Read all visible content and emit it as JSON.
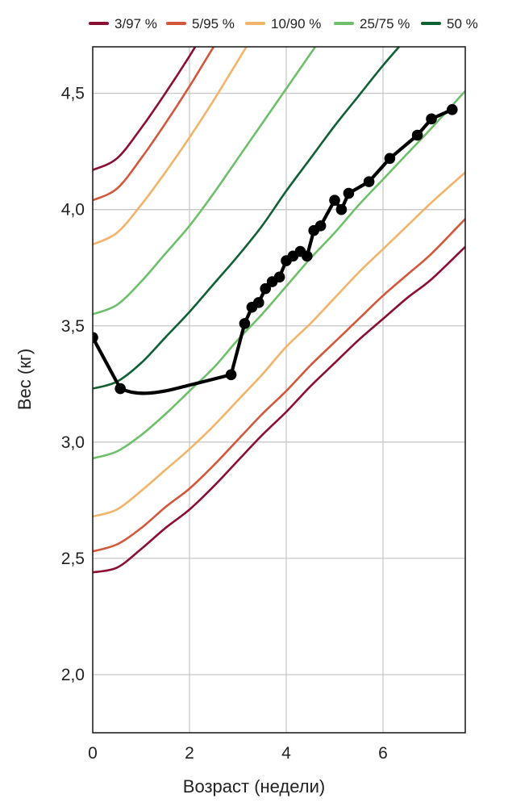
{
  "chart_data": {
    "type": "line",
    "xlabel": "Возраст (недели)",
    "ylabel": "Вес (кг)",
    "xlim": [
      0,
      7.7
    ],
    "ylim": [
      1.75,
      4.7
    ],
    "x_ticks": [
      0,
      2,
      4,
      6
    ],
    "x_tick_labels": [
      "0",
      "2",
      "4",
      "6"
    ],
    "y_ticks": [
      2.0,
      2.5,
      3.0,
      3.5,
      4.0,
      4.5
    ],
    "y_tick_labels": [
      "2,0",
      "2,5",
      "3,0",
      "3,5",
      "4,0",
      "4,5"
    ],
    "grid": true,
    "legend_position": "top",
    "legend": [
      {
        "label": "3/97 %",
        "color": "#8b0f32"
      },
      {
        "label": "5/95 %",
        "color": "#d4573b"
      },
      {
        "label": "10/90 %",
        "color": "#f2b36a"
      },
      {
        "label": "25/75 %",
        "color": "#6dbf6a"
      },
      {
        "label": "50 %",
        "color": "#0f6133"
      }
    ],
    "percentile_curves": [
      {
        "group": "3/97 %",
        "color": "#8b0f32",
        "x": [
          0,
          0.5,
          1,
          1.5,
          2,
          2.5,
          3,
          3.5,
          4,
          4.5,
          5,
          5.5,
          6,
          6.5,
          7,
          7.7
        ],
        "y": [
          2.44,
          2.46,
          2.54,
          2.63,
          2.71,
          2.81,
          2.92,
          3.03,
          3.13,
          3.24,
          3.34,
          3.44,
          3.53,
          3.62,
          3.7,
          3.84
        ]
      },
      {
        "group": "5/95 %",
        "color": "#d4573b",
        "x": [
          0,
          0.5,
          1,
          1.5,
          2,
          2.5,
          3,
          3.5,
          4,
          4.5,
          5,
          5.5,
          6,
          6.5,
          7,
          7.7
        ],
        "y": [
          2.53,
          2.56,
          2.63,
          2.72,
          2.8,
          2.9,
          3.01,
          3.12,
          3.22,
          3.33,
          3.43,
          3.53,
          3.63,
          3.72,
          3.81,
          3.96
        ]
      },
      {
        "group": "10/90 %",
        "color": "#f2b36a",
        "x": [
          0,
          0.5,
          1,
          1.5,
          2,
          2.5,
          3,
          3.5,
          4,
          4.5,
          5,
          5.5,
          6,
          6.5,
          7,
          7.7
        ],
        "y": [
          2.68,
          2.71,
          2.79,
          2.88,
          2.97,
          3.07,
          3.18,
          3.29,
          3.41,
          3.51,
          3.62,
          3.73,
          3.83,
          3.93,
          4.03,
          4.16
        ]
      },
      {
        "group": "25/75 %",
        "color": "#6dbf6a",
        "x": [
          0,
          0.5,
          1,
          1.5,
          2,
          2.5,
          3,
          3.5,
          4,
          4.5,
          5,
          5.5,
          6,
          6.5,
          7,
          7.7
        ],
        "y": [
          2.93,
          2.96,
          3.03,
          3.12,
          3.22,
          3.32,
          3.44,
          3.55,
          3.67,
          3.79,
          3.9,
          4.02,
          4.13,
          4.24,
          4.35,
          4.51
        ]
      },
      {
        "group": "50 %",
        "color": "#0f6133",
        "x": [
          0,
          0.5,
          1,
          1.5,
          2,
          2.5,
          3,
          3.5,
          4,
          4.5,
          5,
          5.5,
          6,
          6.5,
          7
        ],
        "y": [
          3.23,
          3.26,
          3.34,
          3.45,
          3.56,
          3.68,
          3.8,
          3.93,
          4.08,
          4.22,
          4.36,
          4.49,
          4.62,
          4.74,
          4.86
        ]
      },
      {
        "group": "25/75 %",
        "color": "#6dbf6a",
        "x": [
          0,
          0.5,
          1,
          1.5,
          2,
          2.5,
          3,
          3.5,
          4,
          4.5,
          5
        ],
        "y": [
          3.55,
          3.59,
          3.69,
          3.81,
          3.93,
          4.07,
          4.22,
          4.37,
          4.52,
          4.67,
          4.82
        ]
      },
      {
        "group": "10/90 %",
        "color": "#f2b36a",
        "x": [
          0,
          0.5,
          1,
          1.5,
          2,
          2.5,
          3,
          3.5
        ],
        "y": [
          3.85,
          3.9,
          4.02,
          4.16,
          4.31,
          4.47,
          4.64,
          4.81
        ]
      },
      {
        "group": "5/95 %",
        "color": "#d4573b",
        "x": [
          0,
          0.5,
          1,
          1.5,
          2,
          2.5,
          3
        ],
        "y": [
          4.04,
          4.09,
          4.22,
          4.37,
          4.53,
          4.7,
          4.86
        ]
      },
      {
        "group": "3/97 %",
        "color": "#8b0f32",
        "x": [
          0,
          0.5,
          1,
          1.5,
          2,
          2.5,
          3
        ],
        "y": [
          4.17,
          4.22,
          4.35,
          4.5,
          4.66,
          4.83,
          4.99
        ]
      }
    ],
    "measurements": {
      "color": "#000000",
      "x": [
        0,
        0.57,
        2.86,
        3.14,
        3.29,
        3.43,
        3.57,
        3.71,
        3.86,
        4.0,
        4.14,
        4.29,
        4.43,
        4.57,
        4.71,
        5.0,
        5.14,
        5.29,
        5.71,
        6.14,
        6.71,
        7.0,
        7.43
      ],
      "y": [
        3.45,
        3.23,
        3.29,
        3.51,
        3.58,
        3.6,
        3.66,
        3.69,
        3.71,
        3.78,
        3.8,
        3.82,
        3.8,
        3.91,
        3.93,
        4.04,
        4.0,
        4.07,
        4.12,
        4.22,
        4.32,
        4.39,
        4.43
      ]
    },
    "measurement_connection": [
      {
        "x": 0.57,
        "y": 3.23
      },
      {
        "x": 0.8,
        "y": 3.215
      },
      {
        "x": 1.1,
        "y": 3.21
      },
      {
        "x": 1.5,
        "y": 3.22
      },
      {
        "x": 2.0,
        "y": 3.245
      },
      {
        "x": 2.86,
        "y": 3.29
      }
    ]
  }
}
